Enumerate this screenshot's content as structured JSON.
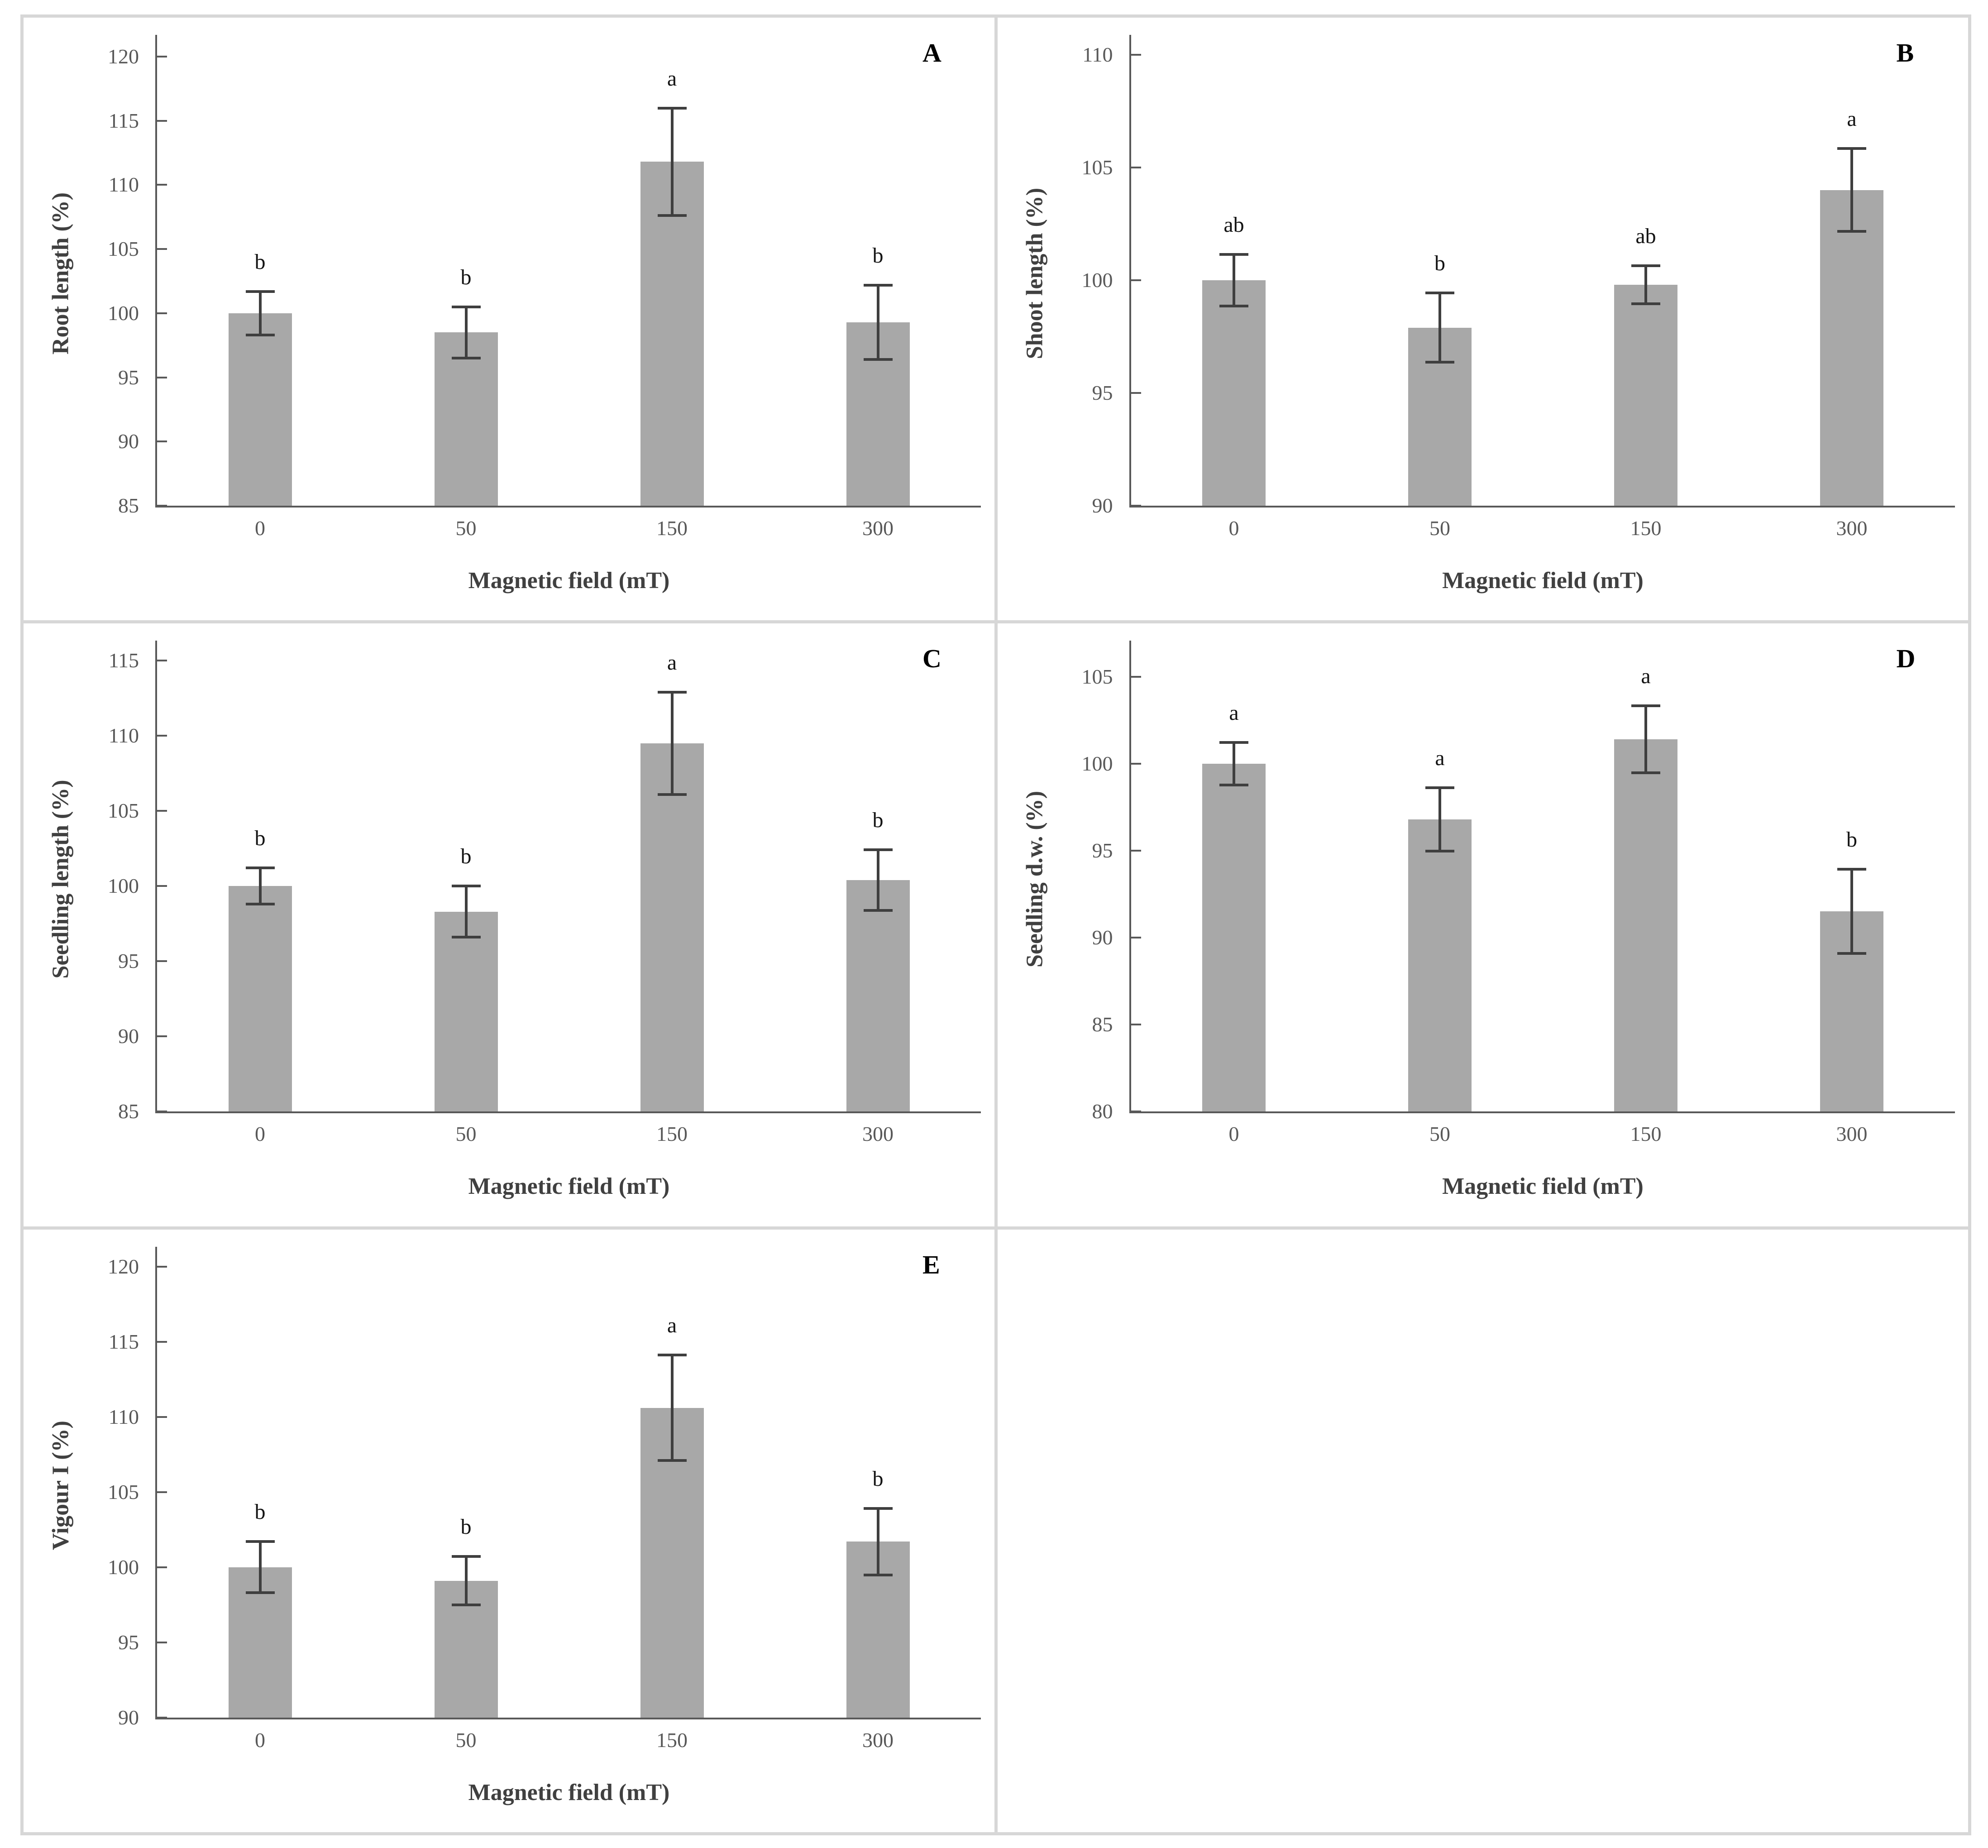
{
  "figure": {
    "description": "Five-panel bar chart figure showing effect of magnetic field pre-treatment on seedling growth parameters, with standard-error bars and significance letters",
    "x_axis_title": "Magnetic field (mT)",
    "panel_letters": [
      "A",
      "B",
      "C",
      "D",
      "E"
    ]
  },
  "colors": {
    "bar_fill": "#a8a8a8",
    "error_bar": "#3f3f3f",
    "axis_line": "#595959",
    "tick_label": "#595959",
    "axis_title": "#404040",
    "panel_letter": "#000000",
    "frame": "#d7d7d7",
    "background": "#ffffff"
  },
  "chart_data": [
    {
      "type": "bar",
      "panel": "A",
      "xlabel": "Magnetic field (mT)",
      "ylabel": "Root length (%)",
      "categories": [
        "0",
        "50",
        "150",
        "300"
      ],
      "values": [
        100.0,
        98.5,
        111.8,
        99.3
      ],
      "errors": [
        1.8,
        2.1,
        4.3,
        3.0
      ],
      "sig_letters": [
        "b",
        "b",
        "a",
        "b"
      ],
      "yticks": [
        85,
        90,
        95,
        100,
        105,
        110,
        115,
        120
      ],
      "ylim": [
        85,
        121.2
      ],
      "grid": false,
      "legend": "none"
    },
    {
      "type": "bar",
      "panel": "B",
      "xlabel": "Magnetic field (mT)",
      "ylabel": "Shoot length (%)",
      "categories": [
        "0",
        "50",
        "150",
        "300"
      ],
      "values": [
        100.0,
        97.9,
        99.8,
        104.0
      ],
      "errors": [
        1.2,
        1.6,
        0.9,
        1.9
      ],
      "sig_letters": [
        "ab",
        "b",
        "ab",
        "a"
      ],
      "yticks": [
        90,
        95,
        100,
        105,
        110
      ],
      "ylim": [
        90,
        110.6
      ],
      "grid": false,
      "legend": "none"
    },
    {
      "type": "bar",
      "panel": "C",
      "xlabel": "Magnetic field (mT)",
      "ylabel": "Seedling length (%)",
      "categories": [
        "0",
        "50",
        "150",
        "300"
      ],
      "values": [
        100.0,
        98.3,
        109.5,
        100.4
      ],
      "errors": [
        1.3,
        1.8,
        3.5,
        2.1
      ],
      "sig_letters": [
        "b",
        "b",
        "a",
        "b"
      ],
      "yticks": [
        85,
        90,
        95,
        100,
        105,
        110,
        115
      ],
      "ylim": [
        85,
        115.9
      ],
      "grid": false,
      "legend": "none"
    },
    {
      "type": "bar",
      "panel": "D",
      "xlabel": "Magnetic field (mT)",
      "ylabel": "Seedling d.w. (%)",
      "categories": [
        "0",
        "50",
        "150",
        "300"
      ],
      "values": [
        100.0,
        96.8,
        101.4,
        91.5
      ],
      "errors": [
        1.3,
        1.9,
        2.0,
        2.5
      ],
      "sig_letters": [
        "a",
        "a",
        "a",
        "b"
      ],
      "yticks": [
        80,
        85,
        90,
        95,
        100,
        105
      ],
      "ylim": [
        80,
        106.7
      ],
      "grid": false,
      "legend": "none"
    },
    {
      "type": "bar",
      "panel": "E",
      "xlabel": "Magnetic field (mT)",
      "ylabel": "Vigour I (%)",
      "categories": [
        "0",
        "50",
        "150",
        "300"
      ],
      "values": [
        100.0,
        99.1,
        110.6,
        101.7
      ],
      "errors": [
        1.8,
        1.7,
        3.6,
        2.3
      ],
      "sig_letters": [
        "b",
        "b",
        "a",
        "b"
      ],
      "yticks": [
        90,
        95,
        100,
        105,
        110,
        115,
        120
      ],
      "ylim": [
        90,
        120.9
      ],
      "grid": false,
      "legend": "none"
    }
  ]
}
